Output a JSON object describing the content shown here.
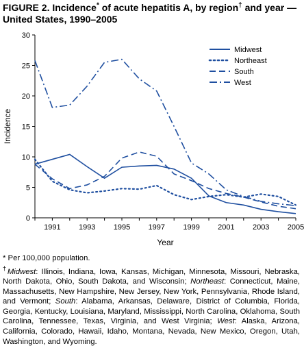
{
  "figure": {
    "title_main": "FIGURE 2. Incidence",
    "title_star": "*",
    "title_mid": " of acute hepatitis A, by region",
    "title_dagger": "†",
    "title_end": " and year — United States, 1990–2005"
  },
  "footnotes": {
    "per100k": "* Per 100,000 population.",
    "dagger_mark": "†",
    "midwest_label": "Midwest",
    "midwest_states": ": Illinois, Indiana, Iowa, Kansas, Michigan, Minnesota, Missouri, Nebraska, North Dakota, Ohio, South Dakota, and Wisconsin; ",
    "northeast_label": "Northeast",
    "northeast_states": ": Connecticut, Maine, Massachusetts, New Hampshire, New Jersey, New York, Pennsylvania, Rhode Island, and Vermont; ",
    "south_label": "South",
    "south_states": ": Alabama, Arkansas, Delaware, District of Columbia, Florida, Georgia, Kentucky, Louisiana, Maryland, Mississippi, North Carolina, Oklahoma, South Carolina, Tennessee, Texas, Virginia, and West Virginia; ",
    "west_label": "West",
    "west_states": ": Alaska, Arizona, California, Colorado, Hawaii, Idaho, Montana, Nevada, New Mexico, Oregon, Utah, Washington, and Wyoming."
  },
  "chart_data": {
    "type": "line",
    "xlabel": "Year",
    "ylabel": "Incidence",
    "xlim": [
      1990,
      2005
    ],
    "ylim": [
      0,
      30
    ],
    "yticks": [
      0,
      5,
      10,
      15,
      20,
      25,
      30
    ],
    "xticks": [
      1991,
      1993,
      1995,
      1997,
      1999,
      2001,
      2003,
      2005
    ],
    "x": [
      1990,
      1991,
      1992,
      1993,
      1994,
      1995,
      1996,
      1997,
      1998,
      1999,
      2000,
      2001,
      2002,
      2003,
      2004,
      2005
    ],
    "legend_position": "top-right",
    "grid": false,
    "series": [
      {
        "name": "Midwest",
        "style": "solid",
        "values": [
          8.8,
          9.6,
          10.4,
          8.4,
          6.5,
          8.3,
          8.5,
          8.6,
          8.0,
          6.5,
          3.6,
          2.5,
          2.1,
          1.4,
          1.0,
          0.7
        ]
      },
      {
        "name": "Northeast",
        "style": "dotted",
        "values": [
          9.6,
          6.0,
          4.6,
          4.1,
          4.4,
          4.8,
          4.7,
          5.3,
          3.8,
          3.0,
          3.5,
          3.8,
          3.4,
          3.9,
          3.5,
          2.1
        ]
      },
      {
        "name": "South",
        "style": "dashed",
        "values": [
          8.8,
          6.4,
          4.8,
          5.4,
          6.8,
          9.8,
          10.8,
          10.1,
          7.2,
          6.1,
          4.8,
          4.0,
          3.4,
          2.6,
          1.9,
          1.5
        ]
      },
      {
        "name": "West",
        "style": "dashdot",
        "values": [
          25.8,
          18.1,
          18.5,
          21.6,
          25.5,
          26.0,
          22.8,
          20.8,
          15.0,
          9.0,
          7.2,
          4.6,
          3.5,
          2.7,
          2.3,
          2.0
        ]
      }
    ]
  }
}
